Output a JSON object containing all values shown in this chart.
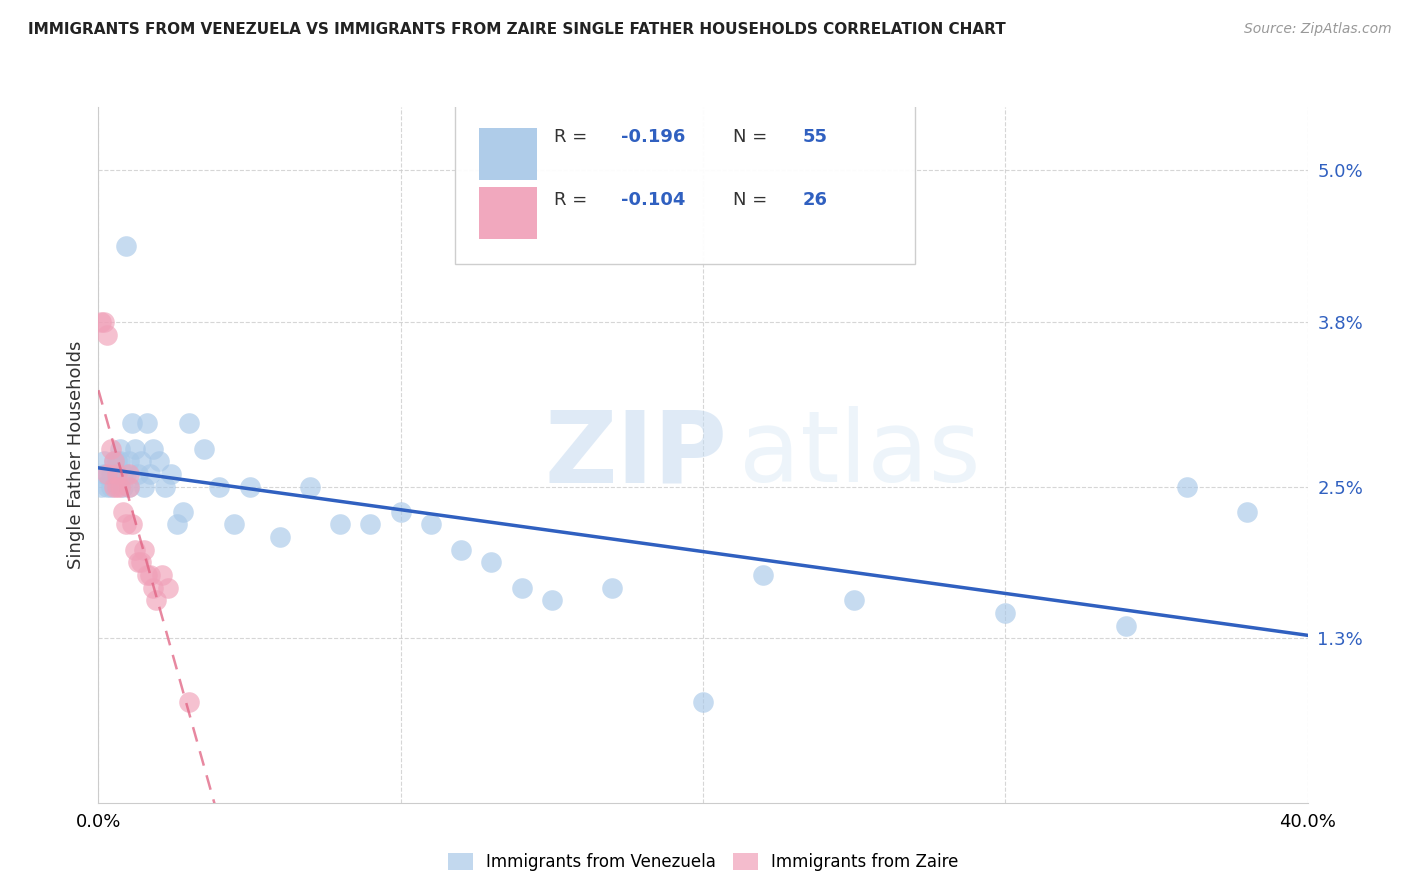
{
  "title": "IMMIGRANTS FROM VENEZUELA VS IMMIGRANTS FROM ZAIRE SINGLE FATHER HOUSEHOLDS CORRELATION CHART",
  "source": "Source: ZipAtlas.com",
  "ylabel": "Single Father Households",
  "ytick_labels": [
    "1.3%",
    "2.5%",
    "3.8%",
    "5.0%"
  ],
  "ytick_values": [
    0.013,
    0.025,
    0.038,
    0.05
  ],
  "xlim": [
    0.0,
    0.4
  ],
  "ylim": [
    0.0,
    0.055
  ],
  "color_venezuela": "#a8c8e8",
  "color_zaire": "#f0a0b8",
  "line_color_venezuela": "#3060c0",
  "line_color_zaire": "#e06080",
  "watermark_zip": "ZIP",
  "watermark_atlas": "atlas",
  "background_color": "#ffffff",
  "grid_color": "#cccccc",
  "venezuela_x": [
    0.001,
    0.002,
    0.002,
    0.003,
    0.003,
    0.004,
    0.004,
    0.005,
    0.005,
    0.006,
    0.006,
    0.007,
    0.007,
    0.008,
    0.008,
    0.009,
    0.009,
    0.01,
    0.01,
    0.011,
    0.012,
    0.013,
    0.014,
    0.015,
    0.016,
    0.017,
    0.018,
    0.02,
    0.022,
    0.024,
    0.026,
    0.028,
    0.03,
    0.035,
    0.04,
    0.045,
    0.05,
    0.06,
    0.07,
    0.08,
    0.09,
    0.1,
    0.11,
    0.12,
    0.13,
    0.14,
    0.15,
    0.17,
    0.2,
    0.22,
    0.25,
    0.3,
    0.34,
    0.36,
    0.38
  ],
  "venezuela_y": [
    0.025,
    0.026,
    0.027,
    0.025,
    0.026,
    0.026,
    0.025,
    0.027,
    0.026,
    0.027,
    0.026,
    0.027,
    0.028,
    0.026,
    0.025,
    0.044,
    0.026,
    0.025,
    0.027,
    0.03,
    0.028,
    0.026,
    0.027,
    0.025,
    0.03,
    0.026,
    0.028,
    0.027,
    0.025,
    0.026,
    0.022,
    0.023,
    0.03,
    0.028,
    0.025,
    0.022,
    0.025,
    0.021,
    0.025,
    0.022,
    0.022,
    0.023,
    0.022,
    0.02,
    0.019,
    0.017,
    0.016,
    0.017,
    0.008,
    0.018,
    0.016,
    0.015,
    0.014,
    0.025,
    0.023
  ],
  "zaire_x": [
    0.001,
    0.002,
    0.003,
    0.003,
    0.004,
    0.005,
    0.005,
    0.006,
    0.006,
    0.007,
    0.008,
    0.009,
    0.01,
    0.01,
    0.011,
    0.012,
    0.013,
    0.014,
    0.015,
    0.016,
    0.017,
    0.018,
    0.019,
    0.021,
    0.023,
    0.03
  ],
  "zaire_y": [
    0.038,
    0.038,
    0.037,
    0.026,
    0.028,
    0.027,
    0.025,
    0.026,
    0.025,
    0.025,
    0.023,
    0.022,
    0.025,
    0.026,
    0.022,
    0.02,
    0.019,
    0.019,
    0.02,
    0.018,
    0.018,
    0.017,
    0.016,
    0.018,
    0.017,
    0.008
  ]
}
